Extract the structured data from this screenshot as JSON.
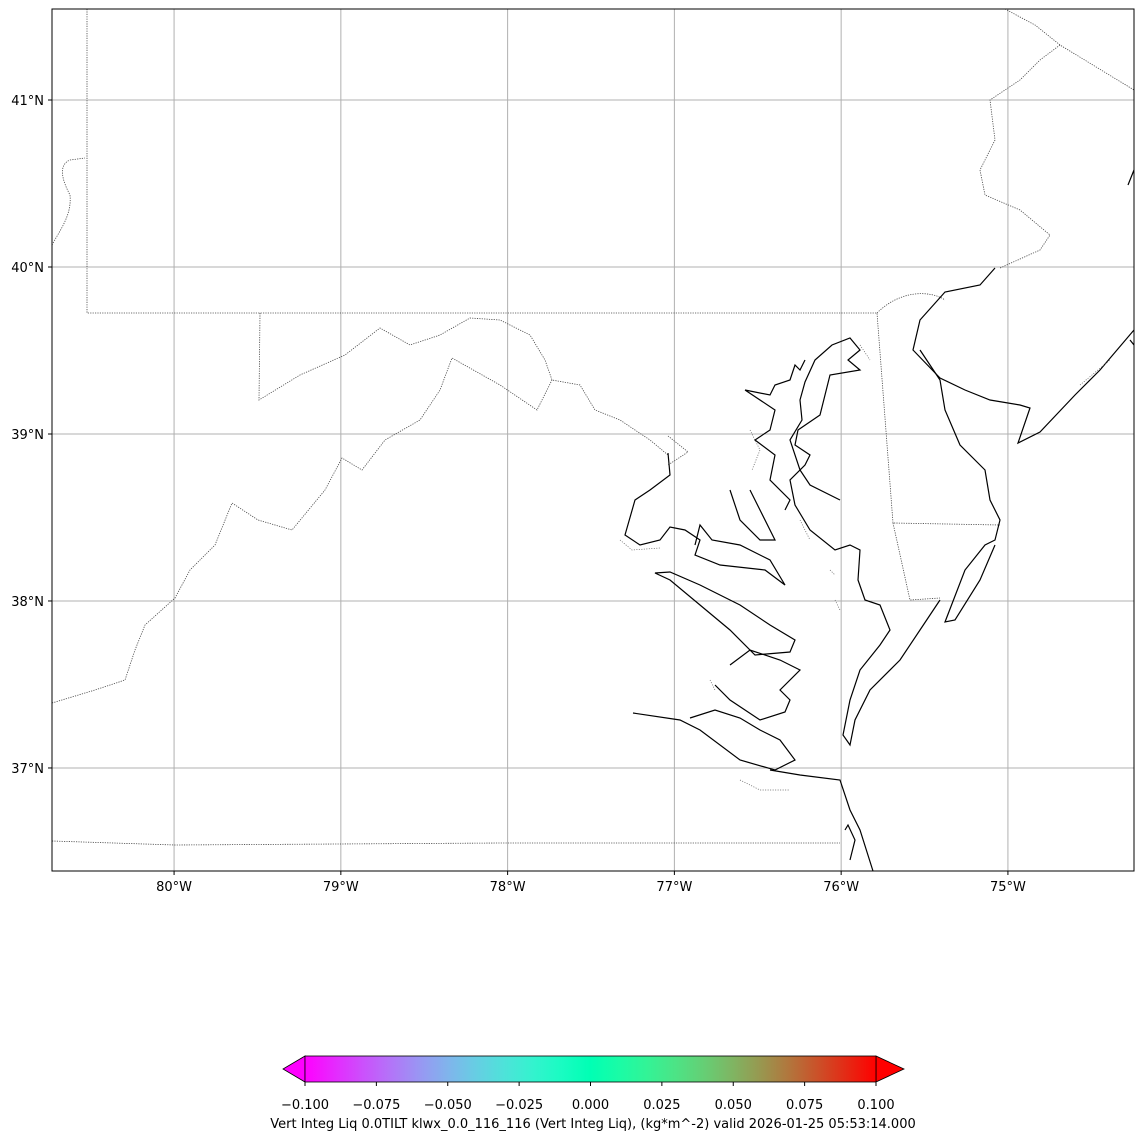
{
  "map": {
    "xlim": [
      -80.732,
      -74.244
    ],
    "ylim": [
      36.383,
      41.545
    ],
    "xticks": [
      {
        "value": -80,
        "label": "80°W"
      },
      {
        "value": -79,
        "label": "79°W"
      },
      {
        "value": -78,
        "label": "78°W"
      },
      {
        "value": -77,
        "label": "77°W"
      },
      {
        "value": -76,
        "label": "76°W"
      },
      {
        "value": -75,
        "label": "75°W"
      }
    ],
    "yticks": [
      {
        "value": 37,
        "label": "37°N"
      },
      {
        "value": 38,
        "label": "38°N"
      },
      {
        "value": 39,
        "label": "39°N"
      },
      {
        "value": 40,
        "label": "40°N"
      },
      {
        "value": 41,
        "label": "41°N"
      }
    ],
    "grid": true
  },
  "colorbar": {
    "cmap": "rainbow",
    "lim": [
      -0.1,
      0.1
    ],
    "ticks": [
      {
        "value": -0.1,
        "label": "−0.100"
      },
      {
        "value": -0.075,
        "label": "−0.075"
      },
      {
        "value": -0.05,
        "label": "−0.050"
      },
      {
        "value": -0.025,
        "label": "−0.025"
      },
      {
        "value": 0,
        "label": "0.000"
      },
      {
        "value": 0.025,
        "label": "0.025"
      },
      {
        "value": 0.05,
        "label": "0.050"
      },
      {
        "value": 0.075,
        "label": "0.075"
      },
      {
        "value": 0.1,
        "label": "0.100"
      }
    ],
    "label": "Vert Integ Liq 0.0TILT klwx_0.0_116_116 (Vert Integ Liq), (kg*m^-2) valid 2026-01-25 05:53:14.000"
  }
}
